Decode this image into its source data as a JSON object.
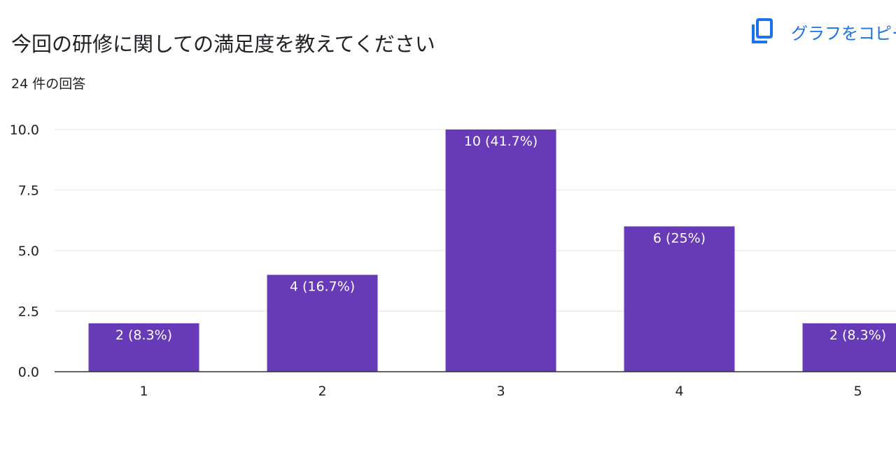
{
  "header": {
    "title": "今回の研修に関しての満足度を教えてください",
    "response_count": "24 件の回答",
    "copy_chart_label": "グラフをコピー"
  },
  "colors": {
    "bar": "#673ab7",
    "link": "#1a73e8",
    "gridline": "#e6e6e6",
    "axis": "#333333"
  },
  "icons": {
    "copy": "copy-icon"
  },
  "chart_data": {
    "type": "bar",
    "categories": [
      "1",
      "2",
      "3",
      "4",
      "5"
    ],
    "values": [
      2,
      4,
      10,
      6,
      2
    ],
    "data_labels": [
      "2 (8.3%)",
      "4 (16.7%)",
      "10 (41.7%)",
      "6 (25%)",
      "2 (8.3%)"
    ],
    "y_ticks": [
      "0.0",
      "2.5",
      "5.0",
      "7.5",
      "10.0"
    ],
    "ylim": [
      0,
      10
    ],
    "grid": true,
    "legend": "none"
  }
}
